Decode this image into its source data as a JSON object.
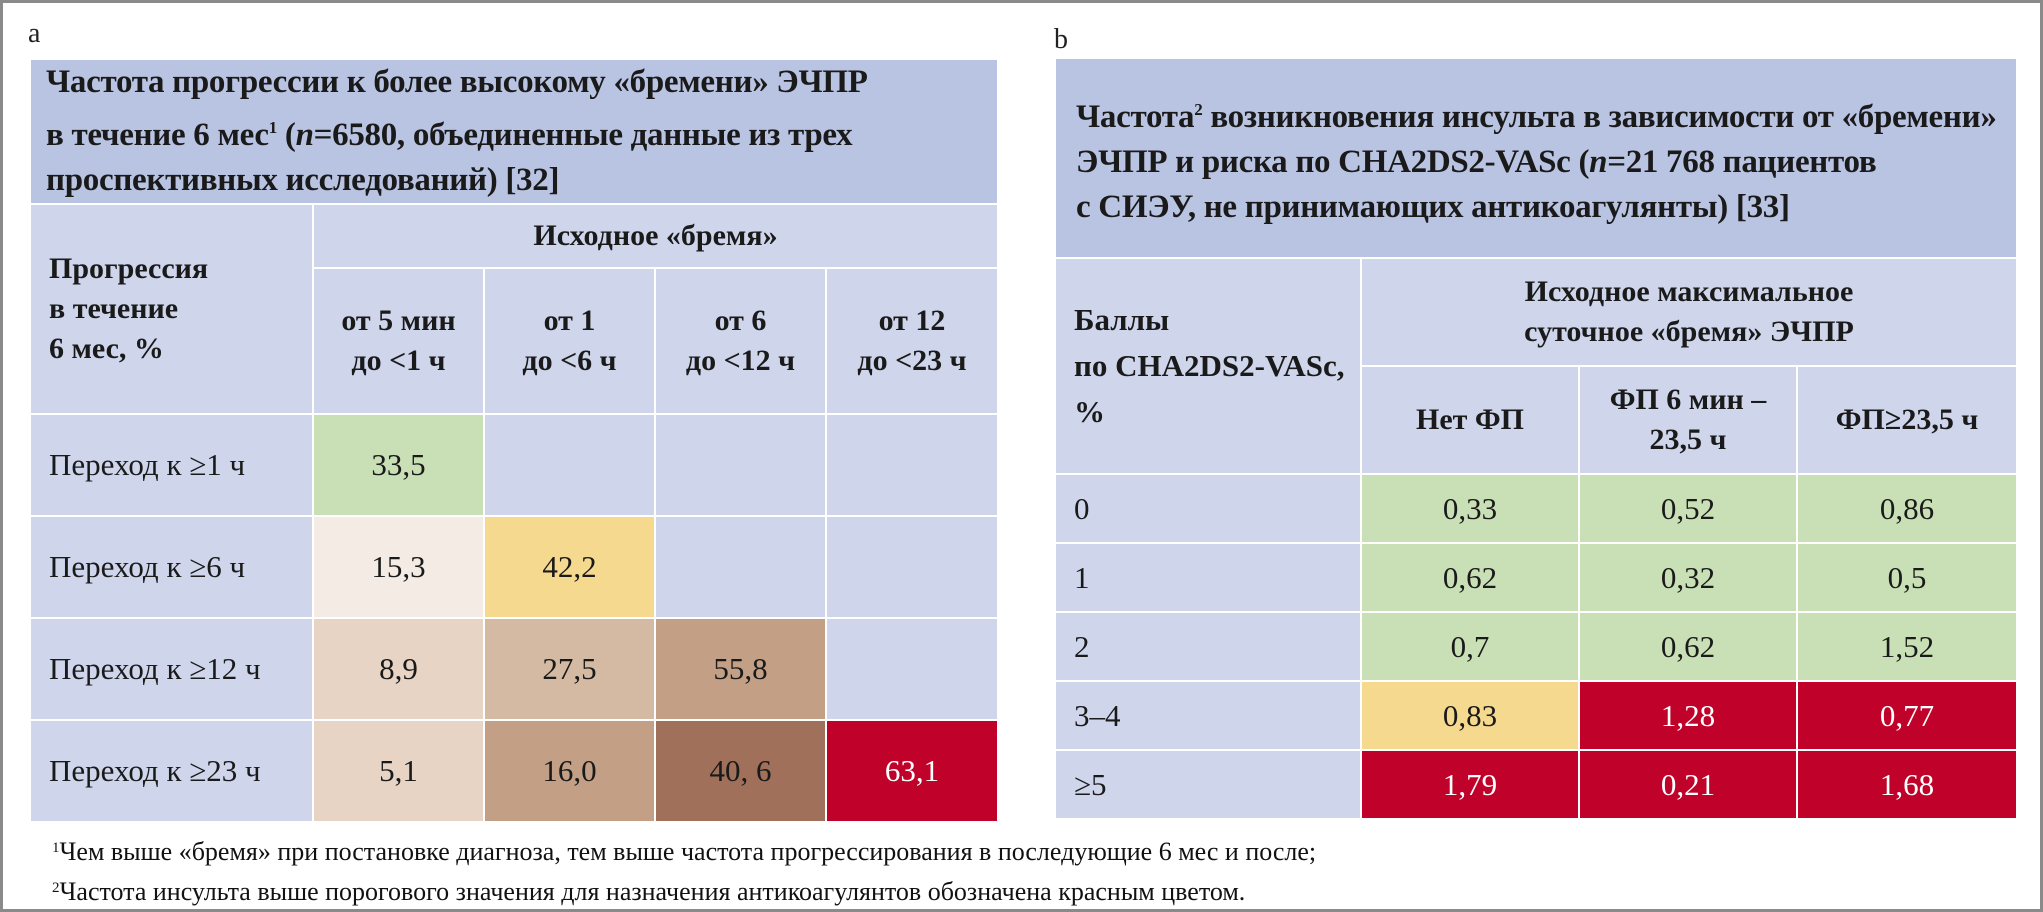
{
  "panel_a": {
    "letter": "a",
    "title_line1": "Частота прогрессии к более высокому «бремени» ЭЧПР",
    "title_line2_pre": "в течение 6 мес",
    "title_line2_sup": "1",
    "title_line2_mid": " (",
    "title_line2_n": "n",
    "title_line2_post": "=6580, объединенные данные из трех",
    "title_line3": "проспективных исследований) [32]",
    "row_header_line1": "Прогрессия",
    "row_header_line2": "в течение",
    "row_header_line3": "6 мес, %",
    "group_header": "Исходное «бремя»",
    "columns": [
      {
        "line1": "от 5 мин",
        "line2": "до <1 ч"
      },
      {
        "line1": "от 1",
        "line2": "до <6 ч"
      },
      {
        "line1": "от 6",
        "line2": "до <12 ч"
      },
      {
        "line1": "от 12",
        "line2": "до <23 ч"
      }
    ],
    "rows": [
      {
        "label": "Переход к ≥1 ч",
        "values": [
          "33,5",
          "",
          "",
          ""
        ]
      },
      {
        "label": "Переход к ≥6 ч",
        "values": [
          "15,3",
          "42,2",
          "",
          ""
        ]
      },
      {
        "label": "Переход к ≥12 ч",
        "values": [
          "8,9",
          "27,5",
          "55,8",
          ""
        ]
      },
      {
        "label": "Переход к ≥23 ч",
        "values": [
          "5,1",
          "16,0",
          "40, 6",
          "63,1"
        ]
      }
    ],
    "cell_colors": {
      "green": "#c9dfb5",
      "yellow": "#f5d98e",
      "cream": "#f3ebe4",
      "tan_light": "#e7d4c4",
      "tan_mid": "#d4b9a3",
      "tan_dark": "#c29f85",
      "brown": "#a0705a",
      "red": "#c0022a",
      "empty": "#cfd6ec"
    }
  },
  "panel_b": {
    "letter": "b",
    "title_line1_pre": "Частота",
    "title_line1_sup": "2",
    "title_line1_post": " возникновения инсульта в зависимости от «бремени»",
    "title_line2_pre": "ЭЧПР и риска по CHA2DS2-VASc (",
    "title_line2_n": "n",
    "title_line2_post": "=21 768 пациентов",
    "title_line3": "с СИЭУ, не принимающих антикоагулянты) [33]",
    "row_header_line1": "Баллы",
    "row_header_line2": "по CHA2DS2-VASc,",
    "row_header_line3": "%",
    "group_header_line1": "Исходное максимальное",
    "group_header_line2": "суточное «бремя» ЭЧПР",
    "columns": [
      {
        "line1": "Нет ФП",
        "line2": ""
      },
      {
        "line1": "ФП 6 мин –",
        "line2": "23,5 ч"
      },
      {
        "line1": "ФП≥23,5 ч",
        "line2": ""
      }
    ],
    "rows": [
      {
        "label": "0",
        "values": [
          "0,33",
          "0,52",
          "0,86"
        ]
      },
      {
        "label": "1",
        "values": [
          "0,62",
          "0,32",
          "0,5"
        ]
      },
      {
        "label": "2",
        "values": [
          "0,7",
          "0,62",
          "1,52"
        ]
      },
      {
        "label": "3–4",
        "values": [
          "0,83",
          "1,28",
          "0,77"
        ]
      },
      {
        "label": "≥5",
        "values": [
          "1,79",
          "0,21",
          "1,68"
        ]
      }
    ]
  },
  "footnotes": {
    "fn1_sup": "1",
    "fn1_text": "Чем выше «бремя» при постановке диагноза, тем выше частота прогрессирования в последующие 6 мес и после;",
    "fn2_sup": "2",
    "fn2_text": "Частота инсульта выше порогового значения для назначения антикоагулянтов обозначена красным цветом."
  }
}
